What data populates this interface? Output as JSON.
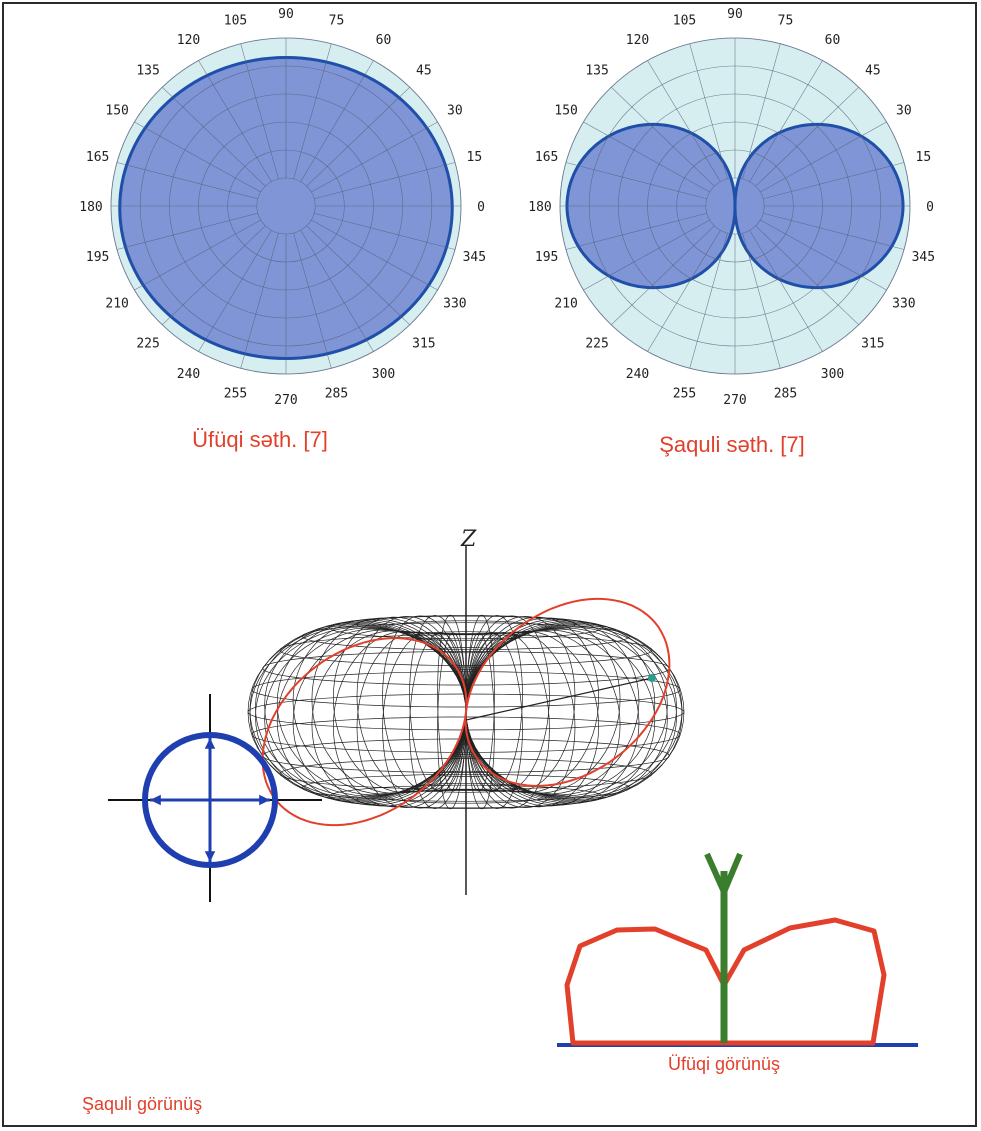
{
  "polar_left": {
    "caption": "Üfüqi səth. [7]",
    "pattern": "omnidirectional",
    "angle_labels": [
      "0",
      "15",
      "30",
      "45",
      "60",
      "75",
      "90",
      "105",
      "120",
      "135",
      "150",
      "165",
      "180",
      "195",
      "210",
      "225",
      "240",
      "255",
      "270",
      "285",
      "300",
      "315",
      "330",
      "345"
    ]
  },
  "polar_right": {
    "caption": "Şaquli səth. [7]",
    "pattern": "figure-eight",
    "angle_labels": [
      "0",
      "15",
      "30",
      "45",
      "60",
      "75",
      "90",
      "105",
      "120",
      "135",
      "150",
      "165",
      "180",
      "195",
      "210",
      "225",
      "240",
      "255",
      "270",
      "285",
      "300",
      "315",
      "330",
      "345"
    ]
  },
  "torus_3d": {
    "axis_label": "Z"
  },
  "vertical_view": {
    "caption": "Şaquli görünüş"
  },
  "horizontal_view": {
    "caption": "Üfüqi görünüş"
  },
  "colors": {
    "pattern_fill": "#7f95d6",
    "pattern_stroke": "#1f4fa8",
    "plot_background": "#d6eef0",
    "red": "#e2402b",
    "green": "#3a7d2c",
    "blue": "#1f3fb0"
  }
}
